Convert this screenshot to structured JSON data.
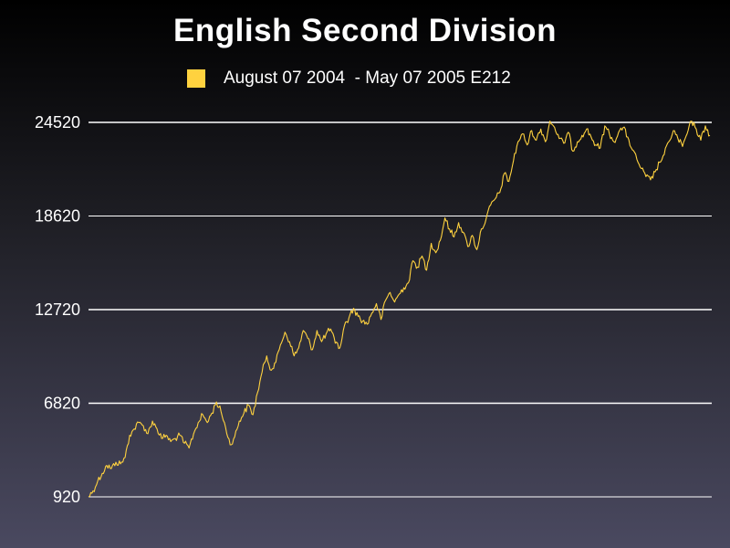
{
  "chart_data": {
    "type": "line",
    "title": "English Second Division",
    "xlabel": "",
    "ylabel": "",
    "ylim": [
      920,
      24520
    ],
    "yticks": [
      920,
      6820,
      12720,
      18620,
      24520
    ],
    "grid": true,
    "legend_position": "top",
    "series": [
      {
        "name": "August 07 2004  - May 07 2005 E212",
        "color": "#ffd23f",
        "values": [
          920,
          1300,
          1900,
          2400,
          2900,
          2700,
          3100,
          3000,
          3400,
          4800,
          5200,
          5600,
          5400,
          4900,
          5700,
          5200,
          4600,
          4800,
          4400,
          4600,
          4800,
          4300,
          4000,
          4900,
          5600,
          6100,
          5600,
          6200,
          6900,
          6300,
          5300,
          4200,
          4700,
          5700,
          6200,
          6700,
          6100,
          7500,
          8800,
          9800,
          8900,
          9400,
          10500,
          11300,
          10700,
          9800,
          10300,
          11400,
          10900,
          10200,
          11400,
          10700,
          11200,
          11500,
          10600,
          10300,
          11700,
          12200,
          12800,
          12300,
          12000,
          11800,
          12500,
          13100,
          12100,
          13300,
          13800,
          13200,
          13700,
          14100,
          14400,
          15800,
          15400,
          16100,
          15200,
          16900,
          16300,
          17100,
          18500,
          17800,
          17300,
          18200,
          17600,
          16700,
          17400,
          16500,
          17800,
          18400,
          19300,
          19700,
          20100,
          21300,
          20800,
          22100,
          23300,
          23800,
          23100,
          24000,
          23400,
          24100,
          23300,
          24600,
          24200,
          23500,
          23200,
          23900,
          22700,
          23300,
          23700,
          24100,
          23600,
          23100,
          22900,
          24300,
          23800,
          23300,
          23900,
          24200,
          23600,
          22800,
          22200,
          21600,
          21100,
          20900,
          21400,
          22000,
          22500,
          23300,
          24000,
          23500,
          23000,
          23800,
          24600,
          24100,
          23400,
          24300,
          23700
        ]
      }
    ]
  }
}
